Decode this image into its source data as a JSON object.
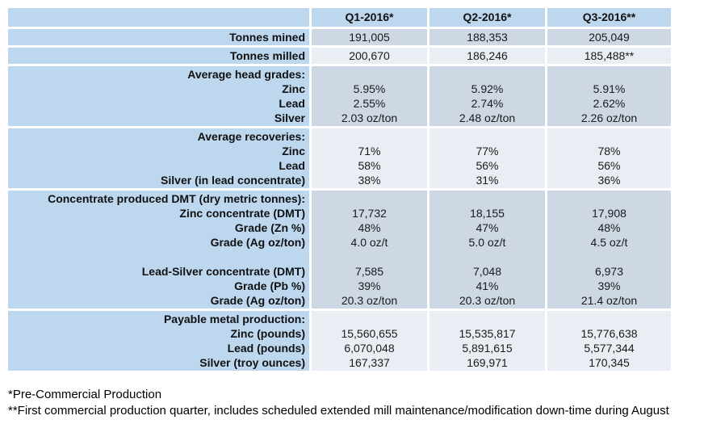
{
  "table": {
    "header": {
      "labels": [
        "",
        "Q1-2016*",
        "Q2-2016*",
        "Q3-2016**"
      ]
    },
    "sections": [
      {
        "name": "tonnes-mined",
        "label": [
          "Tonnes mined"
        ],
        "q1": [
          "191,005"
        ],
        "q2": [
          "188,353"
        ],
        "q3": [
          "205,049"
        ]
      },
      {
        "name": "tonnes-milled",
        "label": [
          "Tonnes milled"
        ],
        "q1": [
          "200,670"
        ],
        "q2": [
          "186,246"
        ],
        "q3": [
          "185,488**"
        ]
      },
      {
        "name": "average-head-grades",
        "label": [
          "Average head grades:",
          "Zinc",
          "Lead",
          "Silver"
        ],
        "q1": [
          "",
          "5.95%",
          "2.55%",
          "2.03 oz/ton"
        ],
        "q2": [
          "",
          "5.92%",
          "2.74%",
          "2.48 oz/ton"
        ],
        "q3": [
          "",
          "5.91%",
          "2.62%",
          "2.26 oz/ton"
        ]
      },
      {
        "name": "average-recoveries",
        "label": [
          "Average recoveries:",
          "Zinc",
          "Lead",
          "Silver (in lead concentrate)"
        ],
        "q1": [
          "",
          "71%",
          "58%",
          "38%"
        ],
        "q2": [
          "",
          "77%",
          "56%",
          "31%"
        ],
        "q3": [
          "",
          "78%",
          "56%",
          "36%"
        ]
      },
      {
        "name": "concentrate-produced",
        "label": [
          "Concentrate produced DMT (dry metric tonnes):",
          "Zinc concentrate (DMT)",
          "Grade (Zn %)",
          "Grade (Ag oz/ton)",
          "",
          "Lead-Silver concentrate (DMT)",
          "Grade (Pb %)",
          "Grade (Ag oz/ton)"
        ],
        "q1": [
          "",
          "17,732",
          "48%",
          "4.0 oz/t",
          "",
          "7,585",
          "39%",
          "20.3 oz/ton"
        ],
        "q2": [
          "",
          "18,155",
          "47%",
          "5.0 oz/t",
          "",
          "7,048",
          "41%",
          "20.3 oz/ton"
        ],
        "q3": [
          "",
          "17,908",
          "48%",
          "4.5 oz/t",
          "",
          "6,973",
          "39%",
          "21.4 oz/ton"
        ]
      },
      {
        "name": "payable-metal-production",
        "label": [
          "Payable metal production:",
          "Zinc (pounds)",
          "Lead (pounds)",
          "Silver (troy ounces)"
        ],
        "q1": [
          "",
          "15,560,655",
          "6,070,048",
          "167,337"
        ],
        "q2": [
          "",
          "15,535,817",
          "5,891,615",
          "169,971"
        ],
        "q3": [
          "",
          "15,776,638",
          "5,577,344",
          "170,345"
        ]
      }
    ]
  },
  "footnotes": [
    "*Pre-Commercial Production",
    "**First commercial production quarter, includes scheduled extended mill maintenance/modification down-time during August"
  ],
  "colors": {
    "header_blue": "#BDD7EE",
    "band_dark": "#CDD8E4",
    "band_light": "#E9EEF4"
  }
}
